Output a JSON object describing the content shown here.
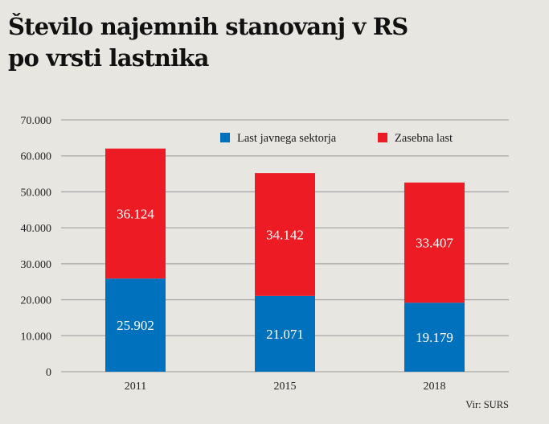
{
  "title_line1": "Število najemnih stanovanj v RS",
  "title_line2": "po vrsti lastnika",
  "source": "Vir: SURS",
  "colors": {
    "public": "#0071bc",
    "private": "#ed1c24",
    "grid": "#a9a9a9",
    "background": "#e8e6e1"
  },
  "chart_data": {
    "type": "bar",
    "stacked": true,
    "title": "Število najemnih stanovanj v RS po vrsti lastnika",
    "xlabel": "",
    "ylabel": "",
    "categories": [
      "2011",
      "2015",
      "2018"
    ],
    "series": [
      {
        "name": "Last javnega sektorja",
        "color": "#0071bc",
        "values": [
          25902,
          21071,
          19179
        ],
        "labels": [
          "25.902",
          "21.071",
          "19.179"
        ]
      },
      {
        "name": "Zasebna last",
        "color": "#ed1c24",
        "values": [
          36124,
          34142,
          33407
        ],
        "labels": [
          "36.124",
          "34.142",
          "33.407"
        ]
      }
    ],
    "ylim": [
      0,
      70000
    ],
    "yticks": [
      0,
      10000,
      20000,
      30000,
      40000,
      50000,
      60000,
      70000
    ],
    "ytick_labels": [
      "0",
      "10.000",
      "20.000",
      "30.000",
      "40.000",
      "50.000",
      "60.000",
      "70.000"
    ],
    "grid": true,
    "legend_position": "top-right",
    "source": "Vir: SURS"
  }
}
